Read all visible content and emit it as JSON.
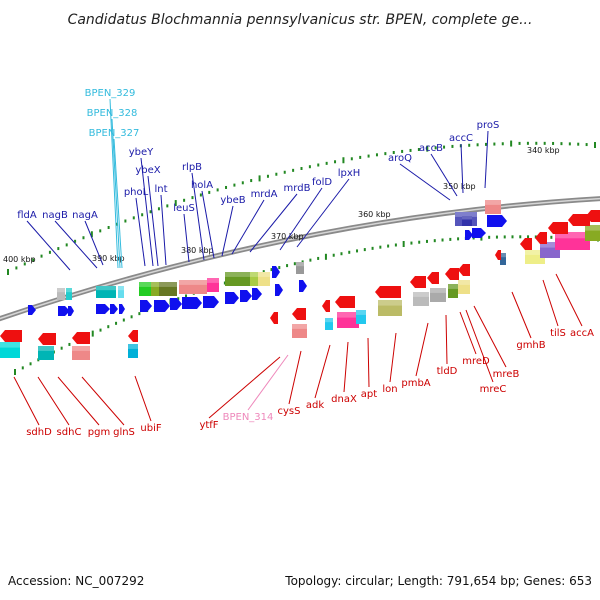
{
  "title": "Candidatus Blochmannia pennsylvanicus str. BPEN, complete ge...",
  "footer": {
    "accession": "Accession: NC_007292",
    "topology": "Topology: circular; Length: 791,654 bp; Genes: 653"
  },
  "colors": {
    "forward_label": "#1a1aa8",
    "reverse_label": "#cc0000",
    "cyan_label": "#33bbdd",
    "pink_label": "#ee88bb",
    "tick": "#228822",
    "forward_arrow": "#1010ee",
    "reverse_arrow": "#ee1010"
  },
  "kbp_labels": [
    "340 kbp",
    "350 kbp",
    "360 kbp",
    "370 kbp",
    "380 kbp",
    "390 kbp",
    "400 kbp"
  ],
  "forward_genes": [
    "fldA",
    "nagB",
    "nagA",
    "BPEN_329",
    "BPEN_328",
    "BPEN_327",
    "phoL",
    "ybeY",
    "ybeX",
    "lnt",
    "leuS",
    "rlpB",
    "holA",
    "ybeB",
    "mrdA",
    "mrdB",
    "folD",
    "lpxH",
    "aroQ",
    "accB",
    "accC",
    "proS"
  ],
  "reverse_genes": [
    "sdhD",
    "sdhC",
    "pgm",
    "glnS",
    "ubiF",
    "ytfF",
    "BPEN_314",
    "cysS",
    "adk",
    "dnaX",
    "apt",
    "lon",
    "pmbA",
    "tldD",
    "mreD",
    "mreC",
    "mreB",
    "gmhB",
    "tilS",
    "accA"
  ]
}
